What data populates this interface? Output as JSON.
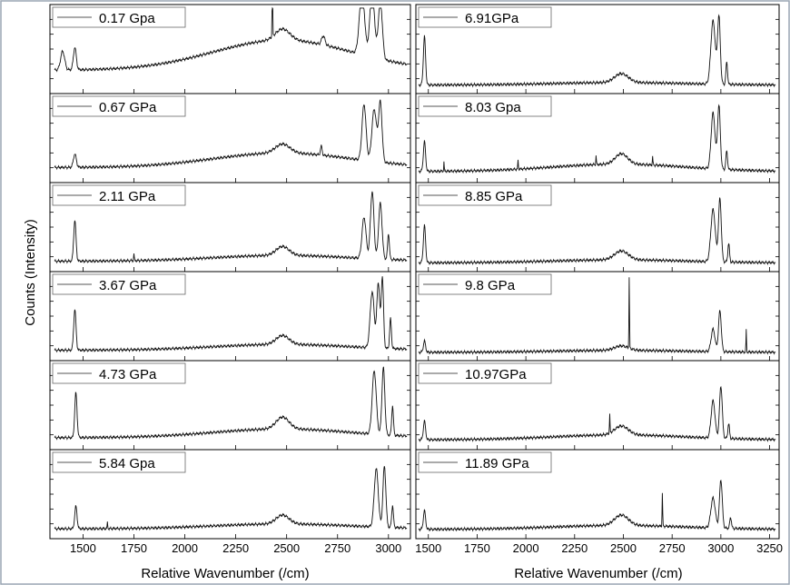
{
  "chart_data": {
    "type": "line",
    "ylabel": "Counts (Intensity)",
    "columns": [
      {
        "xlabel": "Relative Wavenumber (/cm)",
        "xlim": [
          1360,
          3090
        ],
        "xticks": [
          1500,
          1750,
          2000,
          2250,
          2500,
          2750,
          3000
        ],
        "panels": [
          {
            "label": "0.17 Gpa",
            "base": 0.62,
            "peaks": [
              [
                1400,
                0.25,
                14
              ],
              [
                1460,
                0.3,
                10
              ],
              [
                2430,
                0.95,
                2
              ],
              [
                2480,
                0.15,
                50
              ],
              [
                2680,
                0.12,
                12
              ],
              [
                2870,
                0.85,
                18
              ],
              [
                2920,
                0.9,
                16
              ],
              [
                2960,
                0.78,
                14
              ]
            ]
          },
          {
            "label": "0.67 GPa",
            "base": 0.3,
            "peaks": [
              [
                1460,
                0.18,
                10
              ],
              [
                2480,
                0.12,
                50
              ],
              [
                2670,
                0.12,
                6
              ],
              [
                2880,
                0.75,
                14
              ],
              [
                2930,
                0.7,
                16
              ],
              [
                2960,
                0.8,
                12
              ]
            ]
          },
          {
            "label": "2.11 GPa",
            "base": 0.12,
            "peaks": [
              [
                1460,
                0.55,
                8
              ],
              [
                1750,
                0.1,
                2
              ],
              [
                2480,
                0.12,
                45
              ],
              [
                2880,
                0.55,
                14
              ],
              [
                2920,
                0.9,
                12
              ],
              [
                2960,
                0.75,
                12
              ],
              [
                3000,
                0.35,
                6
              ]
            ]
          },
          {
            "label": "3.67 GPa",
            "base": 0.12,
            "peaks": [
              [
                1460,
                0.55,
                8
              ],
              [
                2480,
                0.12,
                45
              ],
              [
                2920,
                0.75,
                14
              ],
              [
                2950,
                0.88,
                10
              ],
              [
                2970,
                0.95,
                8
              ],
              [
                3010,
                0.4,
                6
              ]
            ]
          },
          {
            "label": "4.73 GPa",
            "base": 0.18,
            "peaks": [
              [
                1465,
                0.6,
                8
              ],
              [
                2480,
                0.16,
                45
              ],
              [
                2930,
                0.85,
                14
              ],
              [
                2975,
                0.9,
                10
              ],
              [
                3020,
                0.4,
                6
              ]
            ]
          },
          {
            "label": "5.84 Gpa",
            "base": 0.1,
            "peaks": [
              [
                1465,
                0.3,
                8
              ],
              [
                1620,
                0.08,
                2
              ],
              [
                2480,
                0.12,
                45
              ],
              [
                2940,
                0.78,
                14
              ],
              [
                2980,
                0.82,
                10
              ],
              [
                3020,
                0.3,
                6
              ]
            ]
          }
        ]
      },
      {
        "xlabel": "Relative Wavenumber (/cm)",
        "xlim": [
          1450,
          3280
        ],
        "xticks": [
          1500,
          1750,
          2000,
          2250,
          2500,
          2750,
          3000,
          3250
        ],
        "panels": [
          {
            "label": "6.91GPa",
            "base": 0.05,
            "peaks": [
              [
                1480,
                0.65,
                8
              ],
              [
                2490,
                0.12,
                50
              ],
              [
                2960,
                0.85,
                16
              ],
              [
                2990,
                0.9,
                10
              ],
              [
                3030,
                0.3,
                6
              ]
            ]
          },
          {
            "label": "8.03 Gpa",
            "base": 0.15,
            "peaks": [
              [
                1480,
                0.4,
                8
              ],
              [
                1580,
                0.12,
                2
              ],
              [
                1960,
                0.12,
                2
              ],
              [
                2360,
                0.12,
                2
              ],
              [
                2490,
                0.14,
                45
              ],
              [
                2650,
                0.12,
                2
              ],
              [
                2960,
                0.75,
                14
              ],
              [
                2990,
                0.85,
                10
              ],
              [
                3030,
                0.25,
                6
              ]
            ]
          },
          {
            "label": "8.85 GPa",
            "base": 0.06,
            "peaks": [
              [
                1480,
                0.5,
                8
              ],
              [
                2490,
                0.12,
                50
              ],
              [
                2960,
                0.7,
                16
              ],
              [
                2995,
                0.85,
                10
              ],
              [
                3040,
                0.25,
                6
              ]
            ]
          },
          {
            "label": "9.8 GPa",
            "base": 0.04,
            "peaks": [
              [
                1480,
                0.15,
                8
              ],
              [
                2530,
                0.95,
                2
              ],
              [
                2490,
                0.06,
                50
              ],
              [
                2960,
                0.3,
                14
              ],
              [
                2995,
                0.55,
                10
              ],
              [
                3130,
                0.3,
                2
              ]
            ]
          },
          {
            "label": "10.97GPa",
            "base": 0.1,
            "peaks": [
              [
                1480,
                0.25,
                8
              ],
              [
                2430,
                0.25,
                2
              ],
              [
                2490,
                0.12,
                50
              ],
              [
                2960,
                0.5,
                14
              ],
              [
                3000,
                0.7,
                10
              ],
              [
                3040,
                0.2,
                6
              ]
            ]
          },
          {
            "label": "11.89 GPa",
            "base": 0.08,
            "peaks": [
              [
                1480,
                0.25,
                8
              ],
              [
                2490,
                0.14,
                50
              ],
              [
                2700,
                0.45,
                2
              ],
              [
                2960,
                0.4,
                16
              ],
              [
                3000,
                0.65,
                10
              ],
              [
                3050,
                0.15,
                6
              ]
            ]
          }
        ]
      }
    ]
  }
}
